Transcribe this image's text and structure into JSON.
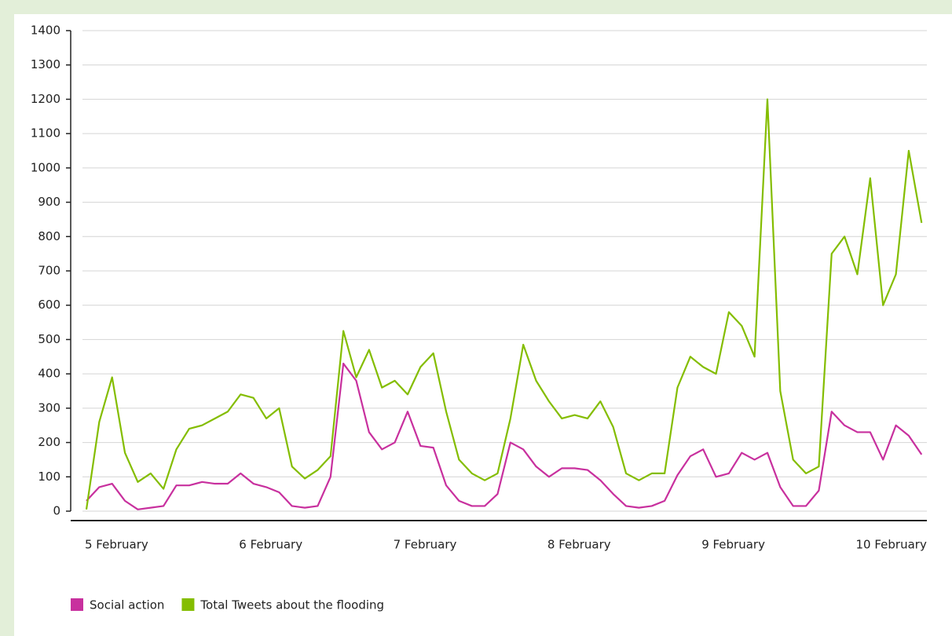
{
  "chart_data": {
    "type": "line",
    "categories": [
      "5 February",
      null,
      null,
      null,
      null,
      null,
      null,
      null,
      null,
      null,
      null,
      null,
      "6 February",
      null,
      null,
      null,
      null,
      null,
      null,
      null,
      null,
      null,
      null,
      null,
      "7 February",
      null,
      null,
      null,
      null,
      null,
      null,
      null,
      null,
      null,
      null,
      null,
      "8 February",
      null,
      null,
      null,
      null,
      null,
      null,
      null,
      null,
      null,
      null,
      null,
      "9 February",
      null,
      null,
      null,
      null,
      null,
      null,
      null,
      null,
      null,
      null,
      null,
      "10 February",
      null,
      null,
      null,
      null,
      null
    ],
    "series": [
      {
        "name": "Social action",
        "color": "#c8309e",
        "values": [
          30,
          70,
          80,
          30,
          5,
          10,
          15,
          75,
          75,
          85,
          80,
          80,
          110,
          80,
          70,
          55,
          15,
          10,
          15,
          100,
          430,
          380,
          230,
          180,
          200,
          290,
          190,
          185,
          75,
          30,
          15,
          15,
          50,
          200,
          180,
          130,
          100,
          125,
          125,
          120,
          90,
          50,
          15,
          10,
          15,
          30,
          105,
          160,
          180,
          100,
          110,
          170,
          150,
          170,
          70,
          15,
          15,
          60,
          290,
          250,
          230,
          230,
          150,
          250,
          220,
          165
        ]
      },
      {
        "name": "Total Tweets about the flooding",
        "color": "#84bd00",
        "values": [
          5,
          260,
          390,
          170,
          85,
          110,
          65,
          180,
          240,
          250,
          270,
          290,
          340,
          330,
          270,
          300,
          130,
          95,
          120,
          160,
          525,
          390,
          470,
          360,
          380,
          340,
          420,
          460,
          290,
          150,
          110,
          90,
          110,
          270,
          485,
          380,
          320,
          270,
          280,
          270,
          320,
          245,
          110,
          90,
          110,
          110,
          360,
          450,
          420,
          400,
          580,
          540,
          450,
          1200,
          350,
          150,
          110,
          130,
          750,
          800,
          690,
          970,
          600,
          690,
          1050,
          840
        ]
      }
    ],
    "ylim": [
      0,
      1400
    ],
    "yticks": [
      0,
      100,
      200,
      300,
      400,
      500,
      600,
      700,
      800,
      900,
      1000,
      1100,
      1200,
      1300,
      1400
    ],
    "grid": true
  }
}
